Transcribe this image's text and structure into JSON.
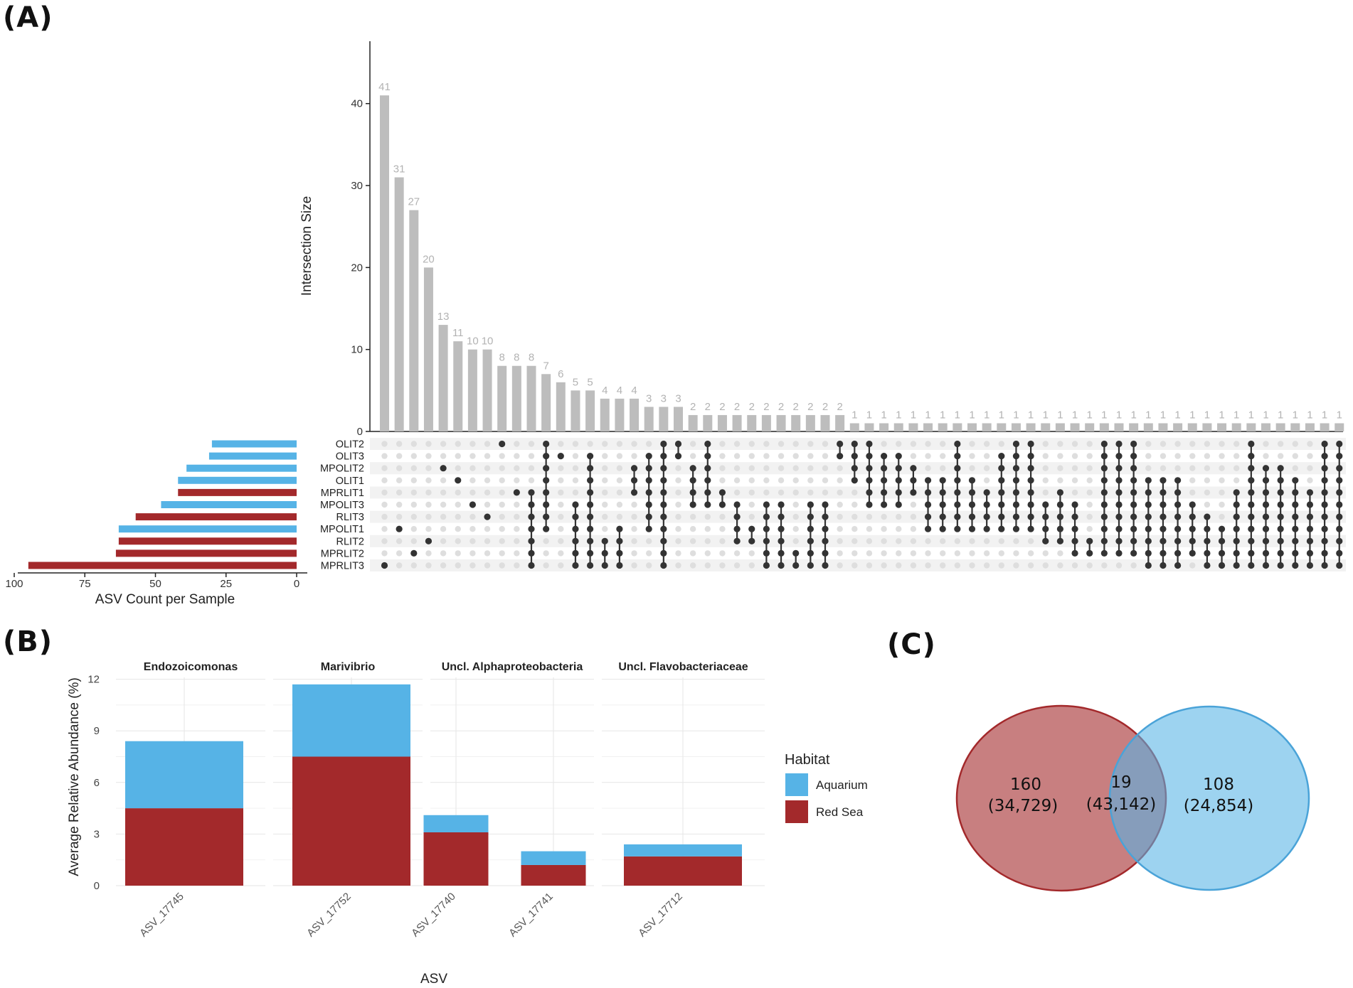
{
  "panels": {
    "a": "(A)",
    "b": "(B)",
    "c": "(C)"
  },
  "colors": {
    "aquarium": "#56b3e6",
    "redsea": "#a3292b",
    "bar_gray": "#bdbdbd",
    "dot_on": "#333333",
    "dot_off": "#dedede",
    "row_stripe": "#f2f2f2",
    "bar_label": "#b3b3b3"
  },
  "chart_data": [
    {
      "type": "bar",
      "name": "upset-intersections",
      "ylabel": "Intersection Size",
      "ylim": [
        0,
        47
      ],
      "yticks": [
        0,
        10,
        20,
        30,
        40
      ],
      "values": [
        41,
        31,
        27,
        20,
        13,
        11,
        10,
        10,
        8,
        8,
        8,
        7,
        6,
        5,
        5,
        4,
        4,
        4,
        3,
        3,
        3,
        2,
        2,
        2,
        2,
        2,
        2,
        2,
        2,
        2,
        2,
        2,
        1,
        1,
        1,
        1,
        1,
        1,
        1,
        1,
        1,
        1,
        1,
        1,
        1,
        1,
        1,
        1,
        1,
        1,
        1,
        1,
        1,
        1,
        1,
        1,
        1,
        1,
        1,
        1,
        1,
        1,
        1,
        1,
        1,
        1
      ],
      "sets": [
        "OLIT2",
        "OLIT3",
        "MPOLIT2",
        "OLIT1",
        "MPRLIT1",
        "MPOLIT3",
        "RLIT3",
        "MPOLIT1",
        "RLIT2",
        "MPRLIT2",
        "MPRLIT3"
      ],
      "memberships": [
        [
          10
        ],
        [
          7
        ],
        [
          9
        ],
        [
          8
        ],
        [
          2
        ],
        [
          3
        ],
        [
          5
        ],
        [
          6
        ],
        [
          0
        ],
        [
          4
        ],
        [
          4,
          5,
          6,
          7,
          8,
          9,
          10
        ],
        [
          0,
          1,
          2,
          3,
          4,
          5,
          6,
          7
        ],
        [
          1
        ],
        [
          5,
          6,
          7,
          8,
          9,
          10
        ],
        [
          1,
          2,
          3,
          4,
          5,
          6,
          7,
          8,
          9,
          10
        ],
        [
          8,
          9,
          10
        ],
        [
          7,
          8,
          9,
          10
        ],
        [
          2,
          3,
          4
        ],
        [
          1,
          2,
          3,
          4,
          5,
          6,
          7
        ],
        [
          0,
          1,
          2,
          3,
          4,
          5,
          6,
          7,
          8,
          9,
          10
        ],
        [
          0,
          1
        ],
        [
          2,
          3,
          4,
          5
        ],
        [
          0,
          1,
          2,
          3,
          4,
          5
        ],
        [
          4,
          5
        ],
        [
          5,
          6,
          7,
          8
        ],
        [
          7,
          8
        ],
        [
          5,
          6,
          7,
          8,
          9,
          10
        ],
        [
          5,
          6,
          7,
          8,
          9,
          10
        ],
        [
          9,
          10
        ],
        [
          5,
          6,
          7,
          8,
          9,
          10
        ],
        [
          5,
          6,
          7,
          8,
          9,
          10
        ],
        [
          0,
          1
        ],
        [
          0,
          1,
          2,
          3
        ],
        [
          0,
          1,
          2,
          3,
          4,
          5
        ],
        [
          1,
          2,
          3,
          4,
          5
        ],
        [
          1,
          2,
          3,
          4,
          5
        ],
        [
          2,
          3,
          4
        ],
        [
          3,
          4,
          5,
          6,
          7
        ],
        [
          3,
          4,
          5,
          6,
          7
        ],
        [
          0,
          1,
          2,
          3,
          4,
          5,
          6,
          7
        ],
        [
          3,
          4,
          5,
          6,
          7
        ],
        [
          4,
          5,
          6,
          7
        ],
        [
          1,
          2,
          3,
          4,
          5,
          6,
          7
        ],
        [
          0,
          1,
          2,
          3,
          4,
          5,
          6,
          7
        ],
        [
          0,
          1,
          2,
          3,
          4,
          5,
          6,
          7
        ],
        [
          5,
          6,
          7,
          8
        ],
        [
          4,
          5,
          6,
          7,
          8
        ],
        [
          5,
          6,
          7,
          8,
          9
        ],
        [
          8,
          9
        ],
        [
          0,
          1,
          2,
          3,
          4,
          5,
          6,
          7,
          8,
          9
        ],
        [
          0,
          1,
          2,
          3,
          4,
          5,
          6,
          7,
          8,
          9
        ],
        [
          0,
          1,
          2,
          3,
          4,
          5,
          6,
          7,
          8,
          9
        ],
        [
          3,
          4,
          5,
          6,
          7,
          8,
          9,
          10
        ],
        [
          3,
          4,
          5,
          6,
          7,
          8,
          9,
          10
        ],
        [
          3,
          4,
          5,
          6,
          7,
          8,
          9,
          10
        ],
        [
          5,
          6,
          7,
          8,
          9
        ],
        [
          6,
          7,
          8,
          9,
          10
        ],
        [
          7,
          8,
          9,
          10
        ],
        [
          4,
          5,
          6,
          7,
          8,
          9,
          10
        ],
        [
          0,
          1,
          2,
          3,
          4,
          5,
          6,
          7,
          8,
          9,
          10
        ],
        [
          2,
          3,
          4,
          5,
          6,
          7,
          8,
          9,
          10
        ],
        [
          2,
          3,
          4,
          5,
          6,
          7,
          8,
          9,
          10
        ],
        [
          3,
          4,
          5,
          6,
          7,
          8,
          9,
          10
        ],
        [
          4,
          5,
          6,
          7,
          8,
          9,
          10
        ],
        [
          0,
          1,
          2,
          3,
          4,
          5,
          6,
          7,
          8,
          9,
          10
        ],
        [
          0,
          1,
          2,
          3,
          4,
          5,
          6,
          7,
          8,
          9,
          10
        ]
      ]
    },
    {
      "type": "bar",
      "name": "asv-count-per-sample",
      "orientation": "horizontal",
      "xlabel": "ASV Count per Sample",
      "xlim": [
        0,
        100
      ],
      "xticks": [
        100,
        75,
        50,
        25,
        0
      ],
      "categories": [
        "OLIT2",
        "OLIT3",
        "MPOLIT2",
        "OLIT1",
        "MPRLIT1",
        "MPOLIT3",
        "RLIT3",
        "MPOLIT1",
        "RLIT2",
        "MPRLIT2",
        "MPRLIT3"
      ],
      "values": [
        30,
        31,
        39,
        42,
        42,
        48,
        57,
        63,
        63,
        64,
        95
      ],
      "habitat": [
        "Aquarium",
        "Aquarium",
        "Aquarium",
        "Aquarium",
        "Red Sea",
        "Aquarium",
        "Red Sea",
        "Aquarium",
        "Red Sea",
        "Red Sea",
        "Red Sea"
      ]
    },
    {
      "type": "bar",
      "name": "relative-abundance",
      "stacked": true,
      "ylabel": "Average Relative Abundance (%)",
      "xlabel": "ASV",
      "ylim": [
        0,
        12.6
      ],
      "yticks": [
        0,
        3,
        6,
        9,
        12
      ],
      "facets": [
        {
          "title": "Endozoicomonas",
          "asvs": [
            "ASV_17745"
          ]
        },
        {
          "title": "Marivibrio",
          "asvs": [
            "ASV_17752"
          ]
        },
        {
          "title": "Uncl. Alphaproteobacteria",
          "asvs": [
            "ASV_17740",
            "ASV_17741"
          ]
        },
        {
          "title": "Uncl. Flavobacteriaceae",
          "asvs": [
            "ASV_17712"
          ]
        }
      ],
      "series": [
        {
          "name": "Red Sea",
          "values": [
            4.5,
            7.5,
            3.1,
            1.2,
            1.7
          ]
        },
        {
          "name": "Aquarium",
          "values": [
            3.9,
            4.2,
            1.0,
            0.8,
            0.7
          ]
        }
      ],
      "legend": {
        "title": "Habitat",
        "entries": [
          "Aquarium",
          "Red Sea"
        ],
        "position": "right"
      }
    },
    {
      "type": "venn",
      "name": "venn",
      "left": {
        "count": "160",
        "reads": "(34,729)"
      },
      "overlap": {
        "count": "19",
        "reads": "(43,142)"
      },
      "right": {
        "count": "108",
        "reads": "(24,854)"
      }
    }
  ]
}
